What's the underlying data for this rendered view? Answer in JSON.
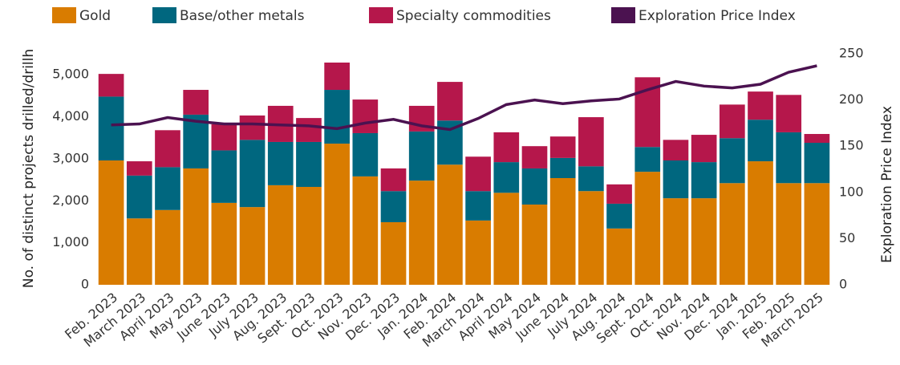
{
  "chart_data": {
    "type": "stacked-bar-line",
    "categories": [
      "Feb. 2023",
      "March 2023",
      "April 2023",
      "May 2023",
      "June 2023",
      "July 2023",
      "Aug. 2023",
      "Sept. 2023",
      "Oct. 2023",
      "Nov. 2023",
      "Dec. 2023",
      "Jan. 2024",
      "Feb. 2024",
      "March 2024",
      "April 2024",
      "May 2024",
      "June 2024",
      "July 2024",
      "Aug. 2024",
      "Sept. 2024",
      "Oct. 2024",
      "Nov. 2024",
      "Dec. 2024",
      "Jan. 2025",
      "Feb. 2025",
      "March 2025"
    ],
    "series": [
      {
        "name": "Gold",
        "color": "#d97c00",
        "type": "bar",
        "values": [
          2960,
          1580,
          1780,
          2770,
          1950,
          1850,
          2370,
          2330,
          3360,
          2580,
          1490,
          2480,
          2860,
          1530,
          2190,
          1910,
          2540,
          2230,
          1340,
          2690,
          2060,
          2060,
          2420,
          2940,
          2420,
          2420
        ]
      },
      {
        "name": "Base/other metals",
        "color": "#00677f",
        "type": "bar",
        "values": [
          1520,
          1020,
          1020,
          1280,
          1250,
          1600,
          1030,
          1070,
          1280,
          1030,
          740,
          1170,
          1050,
          700,
          730,
          860,
          480,
          590,
          590,
          590,
          900,
          860,
          1070,
          990,
          1210,
          960
        ]
      },
      {
        "name": "Specialty commodities",
        "color": "#b5174b",
        "type": "bar",
        "values": [
          540,
          340,
          880,
          590,
          620,
          580,
          860,
          570,
          650,
          800,
          540,
          610,
          920,
          820,
          710,
          530,
          510,
          1170,
          460,
          1660,
          490,
          650,
          800,
          670,
          890,
          210
        ]
      },
      {
        "name": "Exploration Price Index",
        "color": "#4b1250",
        "type": "line",
        "axis": "y2",
        "values": [
          173,
          174,
          181,
          177,
          174,
          174,
          173,
          172,
          169,
          175,
          179,
          172,
          168,
          180,
          195,
          200,
          196,
          199,
          201,
          211,
          220,
          215,
          213,
          217,
          230,
          237
        ]
      }
    ],
    "ylabel": "No. of distinct projects drilled/drillh",
    "y2label": "Exploration Price Index",
    "ylim": [
      0,
      5500
    ],
    "yticks": [
      0,
      {
        "value": 1000,
        "label": "1,000"
      },
      {
        "value": 2000,
        "label": "2,000"
      },
      {
        "value": 3000,
        "label": "3,000"
      },
      {
        "value": 4000,
        "label": "4,000"
      },
      {
        "value": 5000,
        "label": "5,000"
      }
    ],
    "y2lim": [
      0,
      250
    ],
    "y2ticks": [
      0,
      50,
      100,
      150,
      200,
      250
    ],
    "legend": "top"
  }
}
